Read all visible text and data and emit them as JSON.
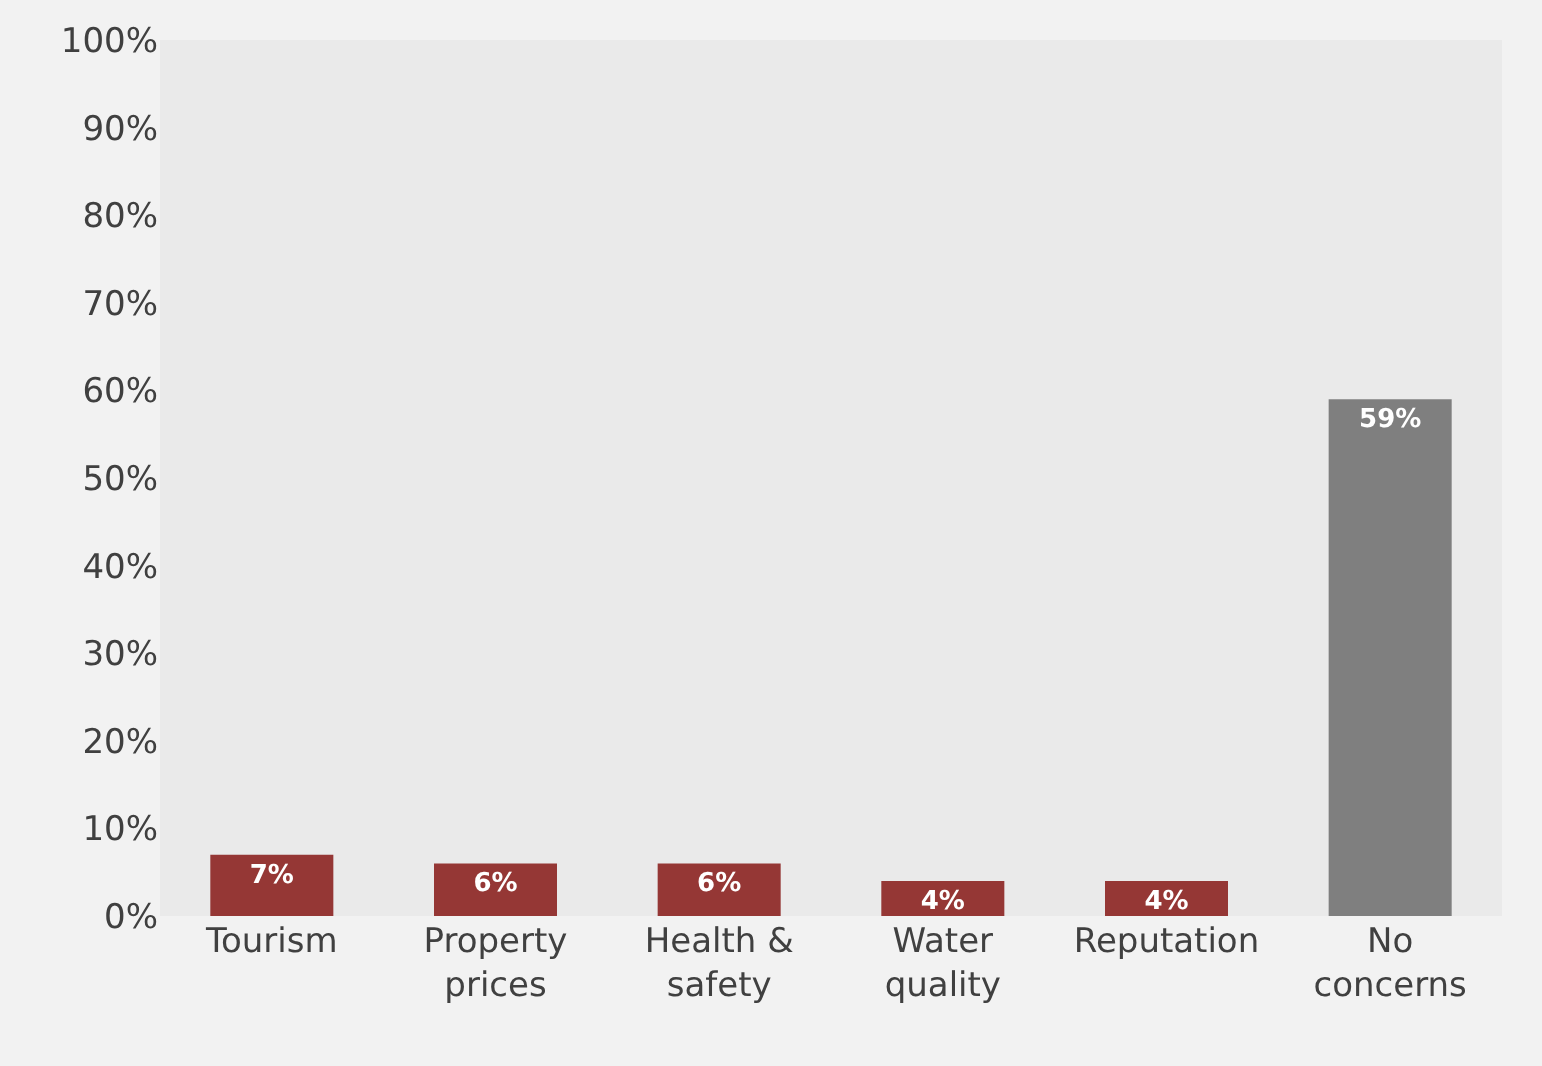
{
  "chart_data": {
    "type": "bar",
    "categories": [
      "Tourism",
      "Property prices",
      "Health & safety",
      "Water quality",
      "Reputation",
      "No concerns"
    ],
    "values": [
      7,
      6,
      6,
      4,
      4,
      59
    ],
    "colors": [
      "#953735",
      "#953735",
      "#953735",
      "#953735",
      "#953735",
      "#7f7f7f"
    ],
    "value_labels": [
      "7%",
      "6%",
      "6%",
      "4%",
      "4%",
      "59%"
    ],
    "ylim": [
      0,
      100
    ],
    "yticks": [
      {
        "value": 0,
        "label": "0%"
      },
      {
        "value": 10,
        "label": "10%"
      },
      {
        "value": 20,
        "label": "20%"
      },
      {
        "value": 30,
        "label": "30%"
      },
      {
        "value": 40,
        "label": "40%"
      },
      {
        "value": 50,
        "label": "50%"
      },
      {
        "value": 60,
        "label": "60%"
      },
      {
        "value": 70,
        "label": "70%"
      },
      {
        "value": 80,
        "label": "80%"
      },
      {
        "value": 90,
        "label": "90%"
      },
      {
        "value": 100,
        "label": "100%"
      }
    ],
    "grid": false
  }
}
